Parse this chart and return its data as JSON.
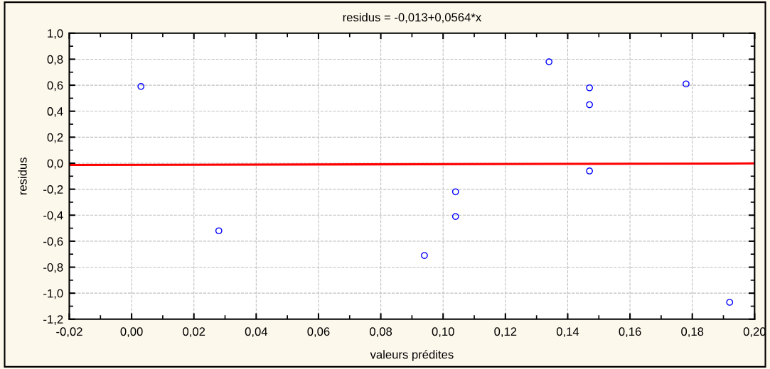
{
  "chart_data": {
    "type": "scatter",
    "title": "residus = -0,013+0,0564*x",
    "xlabel": "valeurs prédites",
    "ylabel": "residus",
    "x": [
      0.003,
      0.028,
      0.094,
      0.104,
      0.104,
      0.134,
      0.147,
      0.147,
      0.147,
      0.178,
      0.192
    ],
    "series": [
      {
        "color": "#0000ff",
        "marker": "circle",
        "values": [
          0.59,
          -0.52,
          -0.71,
          -0.22,
          -0.41,
          0.78,
          0.58,
          0.45,
          -0.06,
          0.61,
          -1.07
        ]
      },
      {
        "type": "line",
        "color": "#ff0000",
        "x": [
          -0.02,
          0.2
        ],
        "values": [
          -0.014,
          -0.002
        ]
      }
    ],
    "grid": true,
    "xlim": [
      -0.02,
      0.2
    ],
    "xticks": [
      {
        "value": -0.02,
        "label": "-0,02"
      },
      {
        "value": 0.0,
        "label": "0,00"
      },
      {
        "value": 0.02,
        "label": "0,02"
      },
      {
        "value": 0.04,
        "label": "0,04"
      },
      {
        "value": 0.06,
        "label": "0,06"
      },
      {
        "value": 0.08,
        "label": "0,08"
      },
      {
        "value": 0.1,
        "label": "0,10"
      },
      {
        "value": 0.12,
        "label": "0,12"
      },
      {
        "value": 0.14,
        "label": "0,14"
      },
      {
        "value": 0.16,
        "label": "0,16"
      },
      {
        "value": 0.18,
        "label": "0,18"
      },
      {
        "value": 0.2,
        "label": "0,20"
      }
    ],
    "ylim": [
      -1.2,
      1.0
    ],
    "yticks": [
      {
        "value": -1.2,
        "label": "-1,2"
      },
      {
        "value": -1.0,
        "label": "-1,0"
      },
      {
        "value": -0.8,
        "label": "-0,8"
      },
      {
        "value": -0.6,
        "label": "-0,6"
      },
      {
        "value": -0.4,
        "label": "-0,4"
      },
      {
        "value": -0.2,
        "label": "-0,2"
      },
      {
        "value": 0.0,
        "label": "0,0"
      },
      {
        "value": 0.2,
        "label": "0,2"
      },
      {
        "value": 0.4,
        "label": "0,4"
      },
      {
        "value": 0.6,
        "label": "0,6"
      },
      {
        "value": 0.8,
        "label": "0,8"
      },
      {
        "value": 1.0,
        "label": "1,0"
      }
    ]
  }
}
